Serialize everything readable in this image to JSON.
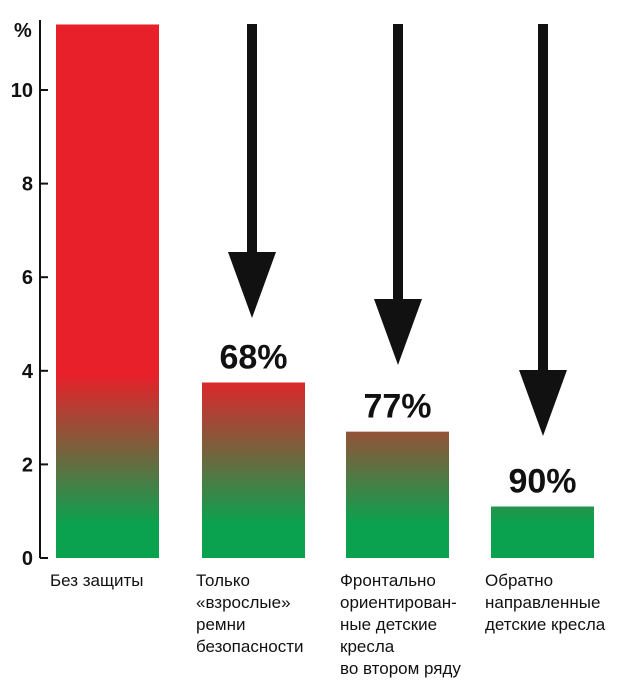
{
  "chart_data": {
    "type": "bar",
    "unit": "%",
    "ylim": [
      0,
      11.3
    ],
    "yticks": [
      {
        "value": 0,
        "label": "0"
      },
      {
        "value": 2,
        "label": "2"
      },
      {
        "value": 4,
        "label": "4"
      },
      {
        "value": 6,
        "label": "6"
      },
      {
        "value": 8,
        "label": "8"
      },
      {
        "value": 10,
        "label": "10"
      }
    ],
    "categories": [
      [
        "Без защиты"
      ],
      [
        "Только",
        "«взрослые»",
        "ремни",
        "безопасности"
      ],
      [
        "Фронтально",
        "ориентирован-",
        "ные детские",
        "кресла",
        "во втором ряду"
      ],
      [
        "Обратно",
        "направленные",
        "детские кресла"
      ]
    ],
    "values": [
      11.4,
      3.75,
      2.7,
      1.1
    ],
    "data_labels": [
      "",
      "68%",
      "77%",
      "90%"
    ],
    "colors": {
      "top": "#e8202a",
      "bottom": "#0aa24f",
      "text": "#111111"
    },
    "arrows": "down",
    "grid": false,
    "legend": "none"
  }
}
